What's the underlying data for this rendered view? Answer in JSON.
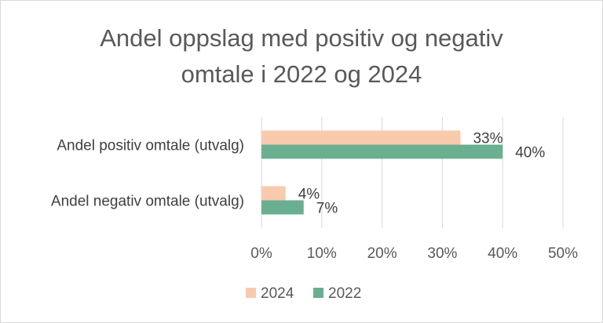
{
  "chart_data": {
    "type": "bar",
    "orientation": "horizontal",
    "title_lines": [
      "Andel oppslag med positiv og negativ",
      "omtale i  2022 og 2024"
    ],
    "categories": [
      "Andel positiv omtale (utvalg)",
      "Andel negativ omtale (utvalg)"
    ],
    "series": [
      {
        "name": "2024",
        "values": [
          33,
          4
        ],
        "labels": [
          "33%",
          "4%"
        ],
        "color": "#F8CBAD"
      },
      {
        "name": "2022",
        "values": [
          40,
          7
        ],
        "labels": [
          "40%",
          "7%"
        ],
        "color": "#6AAF8F"
      }
    ],
    "xlim": [
      0,
      50
    ],
    "x_ticks": [
      "0%",
      "10%",
      "20%",
      "30%",
      "40%",
      "50%"
    ],
    "grid": true,
    "legend_position": "bottom"
  }
}
